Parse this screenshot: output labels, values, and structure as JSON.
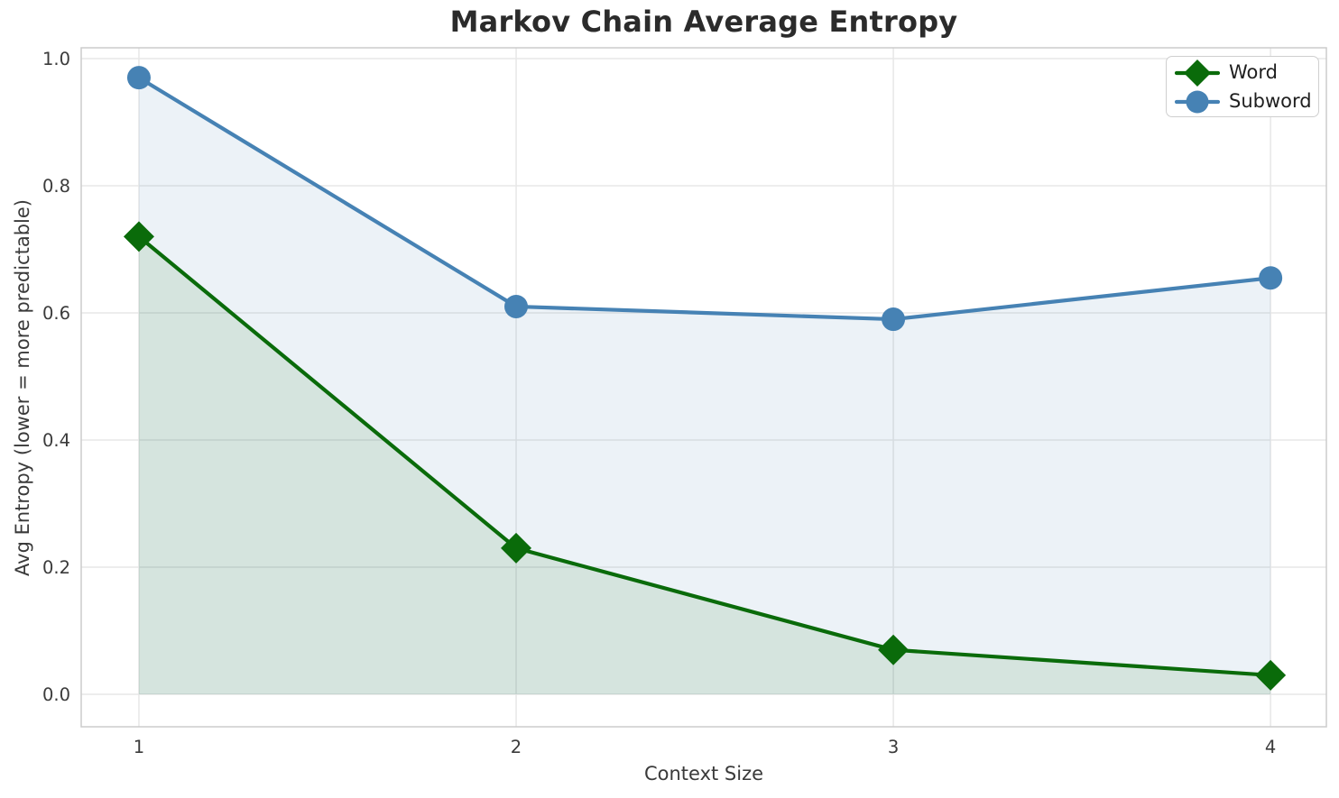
{
  "chart_data": {
    "type": "line",
    "title": "Markov Chain Average Entropy",
    "xlabel": "Context Size",
    "ylabel": "Avg Entropy (lower = more predictable)",
    "x": [
      1,
      2,
      3,
      4
    ],
    "series": [
      {
        "name": "Word",
        "marker": "diamond",
        "color": "#0a6b0a",
        "values": [
          0.72,
          0.23,
          0.07,
          0.03
        ]
      },
      {
        "name": "Subword",
        "marker": "circle",
        "color": "#4682b4",
        "values": [
          0.97,
          0.61,
          0.59,
          0.655
        ]
      }
    ],
    "x_tick_labels": [
      "1",
      "2",
      "3",
      "4"
    ],
    "y_tick_labels": [
      "0.0",
      "0.2",
      "0.4",
      "0.6",
      "0.8",
      "1.0"
    ],
    "y_tick_values": [
      0.0,
      0.2,
      0.4,
      0.6,
      0.8,
      1.0
    ],
    "xlim": [
      0.847,
      4.148
    ],
    "ylim": [
      -0.051,
      1.017
    ],
    "grid": true,
    "legend_position": "upper-right",
    "area_fill": true,
    "fill_alpha": 0.1,
    "baseline": 0
  },
  "colors": {
    "background": "#ffffff",
    "grid": "#e7e7e7",
    "spine": "#cccccc",
    "tick_text": "#3b3b3b",
    "title_text": "#2b2b2b"
  }
}
